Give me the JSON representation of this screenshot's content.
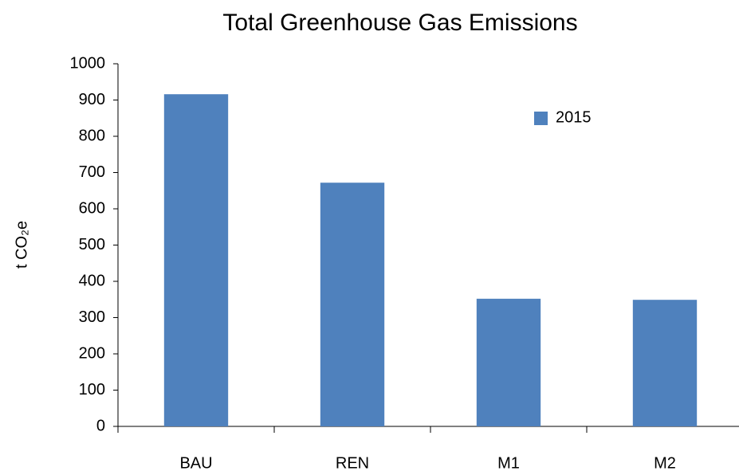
{
  "chart_data": {
    "type": "bar",
    "title": "Total Greenhouse Gas Emissions",
    "y_label": "t CO₂e",
    "categories": [
      "BAU",
      "REN",
      "M1",
      "M2"
    ],
    "series": [
      {
        "name": "2015",
        "color": "#4f81bd",
        "values": [
          916,
          672,
          352,
          349
        ]
      }
    ],
    "ylim": [
      0,
      1000
    ],
    "yticks": [
      0,
      100,
      200,
      300,
      400,
      500,
      600,
      700,
      800,
      900,
      1000
    ],
    "grid": false,
    "legend": "upper right"
  }
}
